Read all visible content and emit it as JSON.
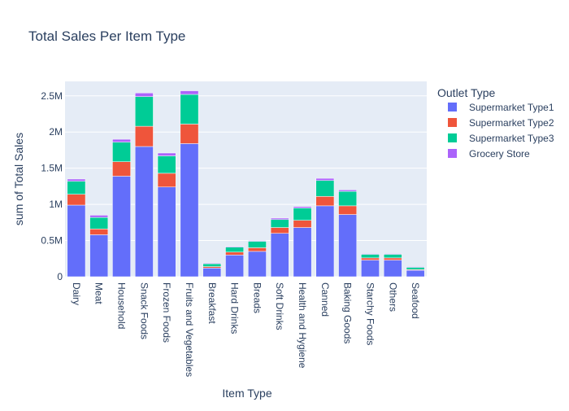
{
  "chart_data": {
    "type": "bar",
    "stacked": true,
    "title": "Total Sales Per Item Type",
    "xlabel": "Item Type",
    "ylabel": "sum of Total Sales",
    "ylim": [
      0,
      2700000
    ],
    "yticks": [
      0,
      500000,
      1000000,
      1500000,
      2000000,
      2500000
    ],
    "ytick_labels": [
      "0",
      "0.5M",
      "1M",
      "1.5M",
      "2M",
      "2.5M"
    ],
    "grid": true,
    "legend_title": "Outlet Type",
    "legend_position": "top-right",
    "categories": [
      "Dairy",
      "Meat",
      "Household",
      "Snack Foods",
      "Frozen Foods",
      "Fruits and Vegetables",
      "Breakfast",
      "Hard Drinks",
      "Breads",
      "Soft Drinks",
      "Health and Hygiene",
      "Canned",
      "Baking Goods",
      "Starchy Foods",
      "Others",
      "Seafood"
    ],
    "series": [
      {
        "name": "Supermarket Type1",
        "color": "#636efa",
        "values": [
          990000,
          580000,
          1390000,
          1800000,
          1240000,
          1840000,
          120000,
          300000,
          350000,
          600000,
          680000,
          980000,
          860000,
          230000,
          230000,
          90000
        ]
      },
      {
        "name": "Supermarket Type2",
        "color": "#ef553b",
        "values": [
          150000,
          80000,
          200000,
          280000,
          190000,
          270000,
          20000,
          40000,
          50000,
          80000,
          100000,
          130000,
          120000,
          30000,
          30000,
          10000
        ]
      },
      {
        "name": "Supermarket Type3",
        "color": "#00cc96",
        "values": [
          180000,
          160000,
          270000,
          410000,
          240000,
          410000,
          40000,
          70000,
          90000,
          110000,
          170000,
          220000,
          200000,
          50000,
          50000,
          30000
        ]
      },
      {
        "name": "Grocery Store",
        "color": "#ab63fa",
        "values": [
          30000,
          30000,
          40000,
          50000,
          40000,
          50000,
          10000,
          10000,
          10000,
          20000,
          20000,
          30000,
          20000,
          10000,
          10000,
          10000
        ]
      }
    ]
  }
}
